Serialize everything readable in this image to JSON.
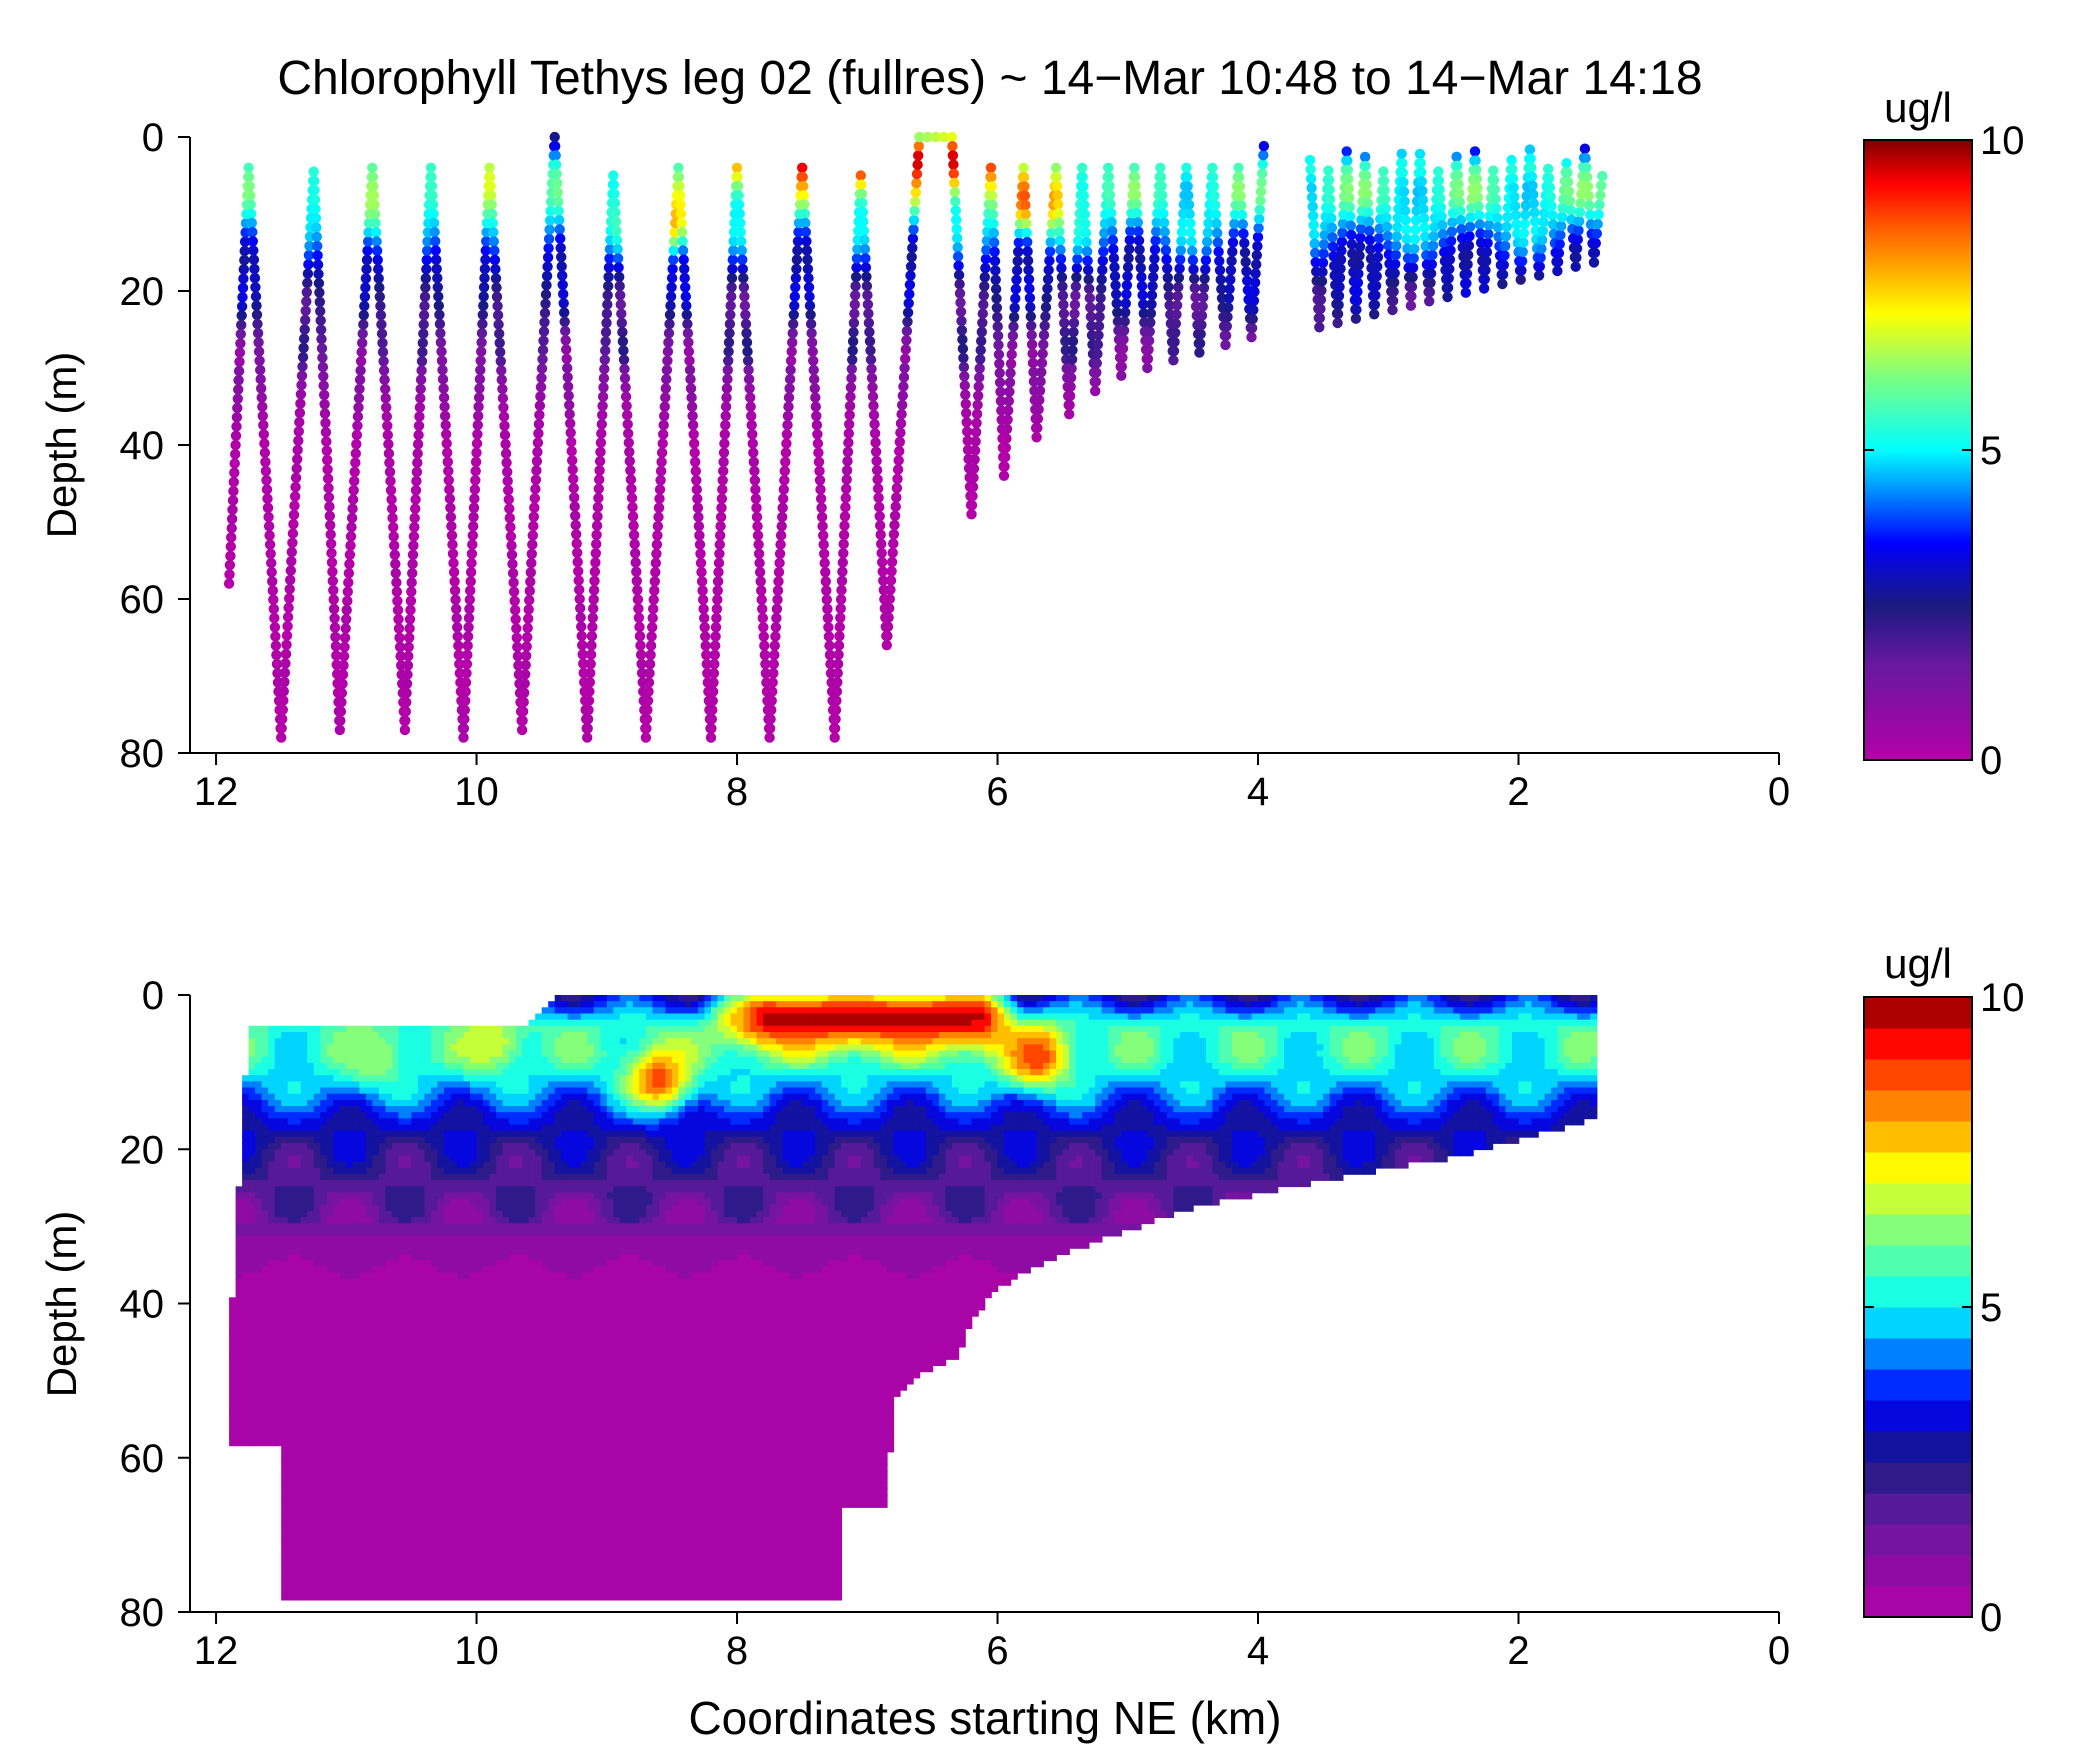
{
  "figure": {
    "title": "Chlorophyll Tethys leg 02 (fullres) ~ 14−Mar 10:48 to 14−Mar 14:18",
    "xlabel": "Coordinates starting NE (km)"
  },
  "chart_data": [
    {
      "type": "scatter",
      "title": "Chlorophyll Tethys leg 02 (fullres) ~ 14−Mar 10:48 to 14−Mar 14:18",
      "xlabel": "",
      "ylabel": "Depth (m)",
      "xlim": [
        12.2,
        0
      ],
      "ylim": [
        80,
        0
      ],
      "x_reversed": true,
      "y_reversed": true,
      "xticks": [
        12,
        10,
        8,
        6,
        4,
        2,
        0
      ],
      "yticks": [
        0,
        20,
        40,
        60,
        80
      ],
      "colorbar": {
        "label": "ug/l",
        "range": [
          0,
          10
        ],
        "ticks": [
          0,
          5,
          10
        ],
        "colormap": "jet-with-magenta-low"
      },
      "yo_profile_turning_points": [
        {
          "x": 11.9,
          "depth": 58
        },
        {
          "x": 11.75,
          "depth": 4
        },
        {
          "x": 11.5,
          "depth": 78
        },
        {
          "x": 11.25,
          "depth": 4.5
        },
        {
          "x": 11.05,
          "depth": 77
        },
        {
          "x": 10.8,
          "depth": 4
        },
        {
          "x": 10.55,
          "depth": 77
        },
        {
          "x": 10.35,
          "depth": 4
        },
        {
          "x": 10.1,
          "depth": 78
        },
        {
          "x": 9.9,
          "depth": 4
        },
        {
          "x": 9.65,
          "depth": 77
        },
        {
          "x": 9.4,
          "depth": 0
        },
        {
          "x": 9.15,
          "depth": 78
        },
        {
          "x": 8.95,
          "depth": 5
        },
        {
          "x": 8.7,
          "depth": 78
        },
        {
          "x": 8.45,
          "depth": 4
        },
        {
          "x": 8.2,
          "depth": 78
        },
        {
          "x": 8.0,
          "depth": 4
        },
        {
          "x": 7.75,
          "depth": 78
        },
        {
          "x": 7.5,
          "depth": 4
        },
        {
          "x": 7.25,
          "depth": 78
        },
        {
          "x": 7.05,
          "depth": 5
        },
        {
          "x": 6.85,
          "depth": 66
        },
        {
          "x": 6.6,
          "depth": 0
        },
        {
          "x": 6.35,
          "depth": 0
        },
        {
          "x": 6.2,
          "depth": 49
        },
        {
          "x": 6.05,
          "depth": 4
        },
        {
          "x": 5.95,
          "depth": 44
        },
        {
          "x": 5.8,
          "depth": 4
        },
        {
          "x": 5.7,
          "depth": 39
        },
        {
          "x": 5.55,
          "depth": 4
        },
        {
          "x": 5.45,
          "depth": 36
        },
        {
          "x": 5.35,
          "depth": 4
        },
        {
          "x": 5.25,
          "depth": 33
        },
        {
          "x": 5.15,
          "depth": 4
        },
        {
          "x": 5.05,
          "depth": 31
        },
        {
          "x": 4.95,
          "depth": 4
        },
        {
          "x": 4.85,
          "depth": 30
        },
        {
          "x": 4.75,
          "depth": 4
        },
        {
          "x": 4.65,
          "depth": 29
        },
        {
          "x": 4.55,
          "depth": 4
        },
        {
          "x": 4.45,
          "depth": 28
        },
        {
          "x": 4.35,
          "depth": 4
        },
        {
          "x": 4.25,
          "depth": 27
        },
        {
          "x": 4.15,
          "depth": 4
        },
        {
          "x": 4.05,
          "depth": 26
        },
        {
          "x": 3.95,
          "depth": 0
        }
      ],
      "chlorophyll_by_depth_ug_l": [
        {
          "depth": 0,
          "value": 3.0
        },
        {
          "depth": 4,
          "value": 5.5
        },
        {
          "depth": 8,
          "value": 5.5
        },
        {
          "depth": 12,
          "value": 4.5
        },
        {
          "depth": 16,
          "value": 3.2
        },
        {
          "depth": 20,
          "value": 2.5
        },
        {
          "depth": 24,
          "value": 2.0
        },
        {
          "depth": 28,
          "value": 1.5
        },
        {
          "depth": 32,
          "value": 0.9
        },
        {
          "depth": 36,
          "value": 0.4
        },
        {
          "depth": 40,
          "value": 0.1
        },
        {
          "depth": 80,
          "value": 0.05
        }
      ],
      "dense_shallow_yos": {
        "x_start": 3.6,
        "x_end": 1.35,
        "depth_min": 3,
        "depth_max_start": 25,
        "depth_max_end": 16,
        "count": 32
      }
    },
    {
      "type": "heatmap",
      "title": "",
      "xlabel": "Coordinates starting NE (km)",
      "ylabel": "Depth (m)",
      "xlim": [
        12.2,
        0
      ],
      "ylim": [
        80,
        0
      ],
      "x_reversed": true,
      "y_reversed": true,
      "xticks": [
        12,
        10,
        8,
        6,
        4,
        2,
        0
      ],
      "yticks": [
        0,
        20,
        40,
        60,
        80
      ],
      "colorbar": {
        "label": "ug/l",
        "range": [
          0,
          10
        ],
        "ticks": [
          0,
          5,
          10
        ],
        "levels": 20
      },
      "data_extent": [
        [
          9.4,
          0
        ],
        [
          1.4,
          0
        ],
        [
          1.4,
          16
        ],
        [
          2.5,
          21
        ],
        [
          3.5,
          24
        ],
        [
          4.5,
          27.5
        ],
        [
          5.25,
          32
        ],
        [
          5.7,
          35
        ],
        [
          6.0,
          38
        ],
        [
          6.2,
          42
        ],
        [
          6.3,
          47
        ],
        [
          6.6,
          49
        ],
        [
          6.8,
          52
        ],
        [
          6.85,
          66
        ],
        [
          7.2,
          66
        ],
        [
          7.2,
          78
        ],
        [
          11.5,
          78
        ],
        [
          11.5,
          58
        ],
        [
          11.9,
          58
        ],
        [
          11.9,
          47
        ],
        [
          11.8,
          17
        ],
        [
          11.75,
          4
        ],
        [
          9.6,
          4
        ],
        [
          9.4,
          0
        ]
      ],
      "features": [
        {
          "type": "surface-bloom",
          "x_from": 8.3,
          "x_to": 5.8,
          "depth_from": 0,
          "depth_to": 6,
          "value": 9.6
        },
        {
          "type": "bloom-core",
          "x": 5.7,
          "depth": 8,
          "value": 9.0
        },
        {
          "type": "patch",
          "x": 8.6,
          "depth": 11,
          "value": 8.8
        },
        {
          "type": "patch",
          "x": 9.9,
          "depth": 6,
          "value": 7.0
        },
        {
          "type": "patch",
          "x": 10.8,
          "depth": 8,
          "value": 6.5
        }
      ]
    }
  ]
}
